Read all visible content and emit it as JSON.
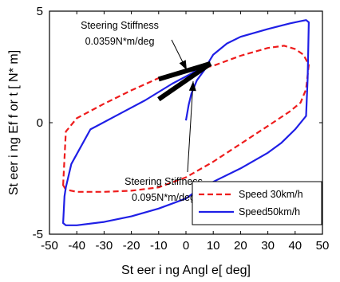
{
  "chart_data": {
    "type": "line",
    "xlabel": "St eer i ng Angl e[ deg]",
    "ylabel": "St eer i ng Ef f or t [ N* m]",
    "xlim": [
      -50,
      50
    ],
    "ylim": [
      -5,
      5
    ],
    "x_ticks": [
      "-50",
      "-40",
      "-30",
      "-20",
      "-10",
      "0",
      "10",
      "20",
      "30",
      "40",
      "50"
    ],
    "y_ticks": [
      "-5",
      "0",
      "5"
    ],
    "grid": false,
    "legend_position": "bottom-right",
    "colors": {
      "speed30": "#ee1c1c",
      "speed50": "#1f1fe6",
      "slope_lines": "#000000"
    },
    "series": [
      {
        "name": "Speed 30km/h",
        "style": "dashed",
        "upper": {
          "x": [
            -45,
            -44,
            -40,
            -30,
            -20,
            -10,
            0,
            10,
            20,
            30,
            36,
            40,
            43,
            45
          ],
          "y": [
            -2.8,
            -0.4,
            0.2,
            0.85,
            1.45,
            2.0,
            2.3,
            2.55,
            3.0,
            3.35,
            3.45,
            3.3,
            3.05,
            2.6
          ]
        },
        "lower": {
          "x": [
            45,
            44,
            42,
            38,
            30,
            20,
            10,
            0,
            -10,
            -20,
            -30,
            -40,
            -44,
            -45
          ],
          "y": [
            2.6,
            1.5,
            0.9,
            0.5,
            -0.15,
            -0.95,
            -1.75,
            -2.45,
            -2.9,
            -3.05,
            -3.1,
            -3.1,
            -3.0,
            -2.8
          ]
        }
      },
      {
        "name": "Speed50km/h",
        "style": "solid",
        "upper": {
          "x": [
            -45,
            -44.5,
            -44,
            -42,
            -35,
            -25,
            -15,
            -5,
            2,
            5,
            8,
            10,
            15,
            20,
            30,
            38,
            42,
            44,
            45
          ],
          "y": [
            -4.5,
            -3.3,
            -2.9,
            -1.85,
            -0.3,
            0.35,
            1.0,
            1.75,
            2.2,
            2.45,
            2.65,
            3.05,
            3.55,
            3.85,
            4.2,
            4.45,
            4.55,
            4.6,
            4.5
          ]
        },
        "lower": {
          "x": [
            45,
            44.6,
            44,
            40,
            35,
            30,
            20,
            10,
            5,
            0,
            -10,
            -20,
            -30,
            -40,
            -44,
            -45
          ],
          "y": [
            4.5,
            2.0,
            0.3,
            -0.3,
            -0.9,
            -1.35,
            -2.05,
            -2.65,
            -2.95,
            -3.4,
            -3.85,
            -4.2,
            -4.45,
            -4.6,
            -4.6,
            -4.5
          ]
        },
        "center_branch": {
          "x": [
            0,
            1,
            2,
            4,
            7,
            9
          ],
          "y": [
            0.1,
            0.8,
            1.3,
            1.9,
            2.4,
            2.6
          ]
        }
      }
    ],
    "slope_lines": [
      {
        "x": [
          -10,
          9
        ],
        "y": [
          1.95,
          2.65
        ]
      },
      {
        "x": [
          -10,
          9
        ],
        "y": [
          1.05,
          2.65
        ]
      }
    ],
    "annotations": [
      {
        "lines": [
          "Steering Stiffness",
          "0.0359N*m/deg"
        ]
      },
      {
        "lines": [
          "Steering Stiffness",
          "0.095N*m/deg"
        ]
      }
    ]
  }
}
